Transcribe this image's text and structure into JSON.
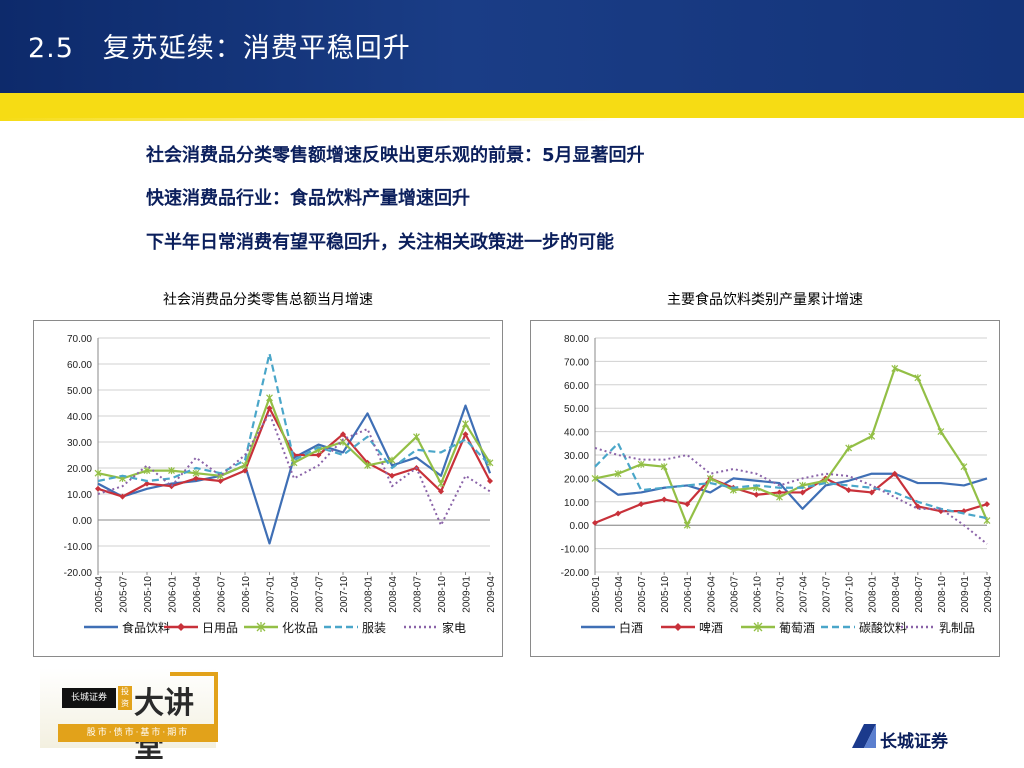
{
  "slide": {
    "section_number": "2.5",
    "title": "复苏延续：消费平稳回升",
    "bullets": [
      "社会消费品分类零售额增速反映出更乐观的前景：5月显著回升",
      "快速消费品行业：食品饮料产量增速回升",
      "下半年日常消费有望平稳回升，关注相关政策进一步的可能"
    ]
  },
  "logo": {
    "mark_text": "长城证券",
    "square_text": "投资",
    "big_text": "大讲堂",
    "sub_text": "股市·债市·基市·期市"
  },
  "brand": {
    "name": "长城证券",
    "accent": "#0b1f5c"
  },
  "colors": {
    "header": "#14347a",
    "yellow": "#f6dc14"
  },
  "chart_data": [
    {
      "type": "line",
      "title": "社会消费品分类零售总额当月增速",
      "ylim": [
        -20,
        70
      ],
      "yticks": [
        "70.00",
        "60.00",
        "50.00",
        "40.00",
        "30.00",
        "20.00",
        "10.00",
        "0.00",
        "-10.00",
        "-20.00"
      ],
      "x": [
        "2005-04",
        "2005-07",
        "2005-10",
        "2006-01",
        "2006-04",
        "2006-07",
        "2006-10",
        "2007-01",
        "2007-04",
        "2007-07",
        "2007-10",
        "2008-01",
        "2008-04",
        "2008-07",
        "2008-10",
        "2009-01",
        "2009-04"
      ],
      "grid": true,
      "legend": "bottom",
      "series": [
        {
          "name": "食品饮料",
          "color": "#3f6fb5",
          "style": "solid",
          "values": [
            14,
            9,
            12,
            14,
            15,
            17,
            21,
            -9,
            24,
            29,
            26,
            41,
            21,
            24,
            17,
            44,
            18
          ]
        },
        {
          "name": "日用品",
          "color": "#c8313a",
          "style": "solid-marker",
          "values": [
            12,
            9,
            14,
            13,
            16,
            15,
            19,
            43,
            25,
            25,
            33,
            22,
            17,
            20,
            11,
            33,
            15
          ]
        },
        {
          "name": "化妆品",
          "color": "#93bf46",
          "style": "solid-star",
          "values": [
            18,
            16,
            19,
            19,
            18,
            17,
            21,
            47,
            22,
            27,
            30,
            21,
            23,
            32,
            14,
            37,
            22
          ]
        },
        {
          "name": "服装",
          "color": "#4aa6c9",
          "style": "dashed",
          "values": [
            15,
            17,
            15,
            16,
            20,
            18,
            23,
            64,
            23,
            28,
            25,
            32,
            20,
            27,
            26,
            31,
            21
          ]
        },
        {
          "name": "家电",
          "color": "#8a63a8",
          "style": "dotted",
          "values": [
            10,
            13,
            21,
            13,
            24,
            17,
            25,
            41,
            16,
            21,
            31,
            35,
            13,
            20,
            -2,
            17,
            11
          ]
        }
      ]
    },
    {
      "type": "line",
      "title": "主要食品饮料类别产量累计增速",
      "ylim": [
        -20,
        80
      ],
      "yticks": [
        "80.00",
        "70.00",
        "60.00",
        "50.00",
        "40.00",
        "30.00",
        "20.00",
        "10.00",
        "0.00",
        "-10.00",
        "-20.00"
      ],
      "x": [
        "2005-01",
        "2005-04",
        "2005-07",
        "2005-10",
        "2006-01",
        "2006-04",
        "2006-07",
        "2006-10",
        "2007-01",
        "2007-04",
        "2007-07",
        "2007-10",
        "2008-01",
        "2008-04",
        "2008-07",
        "2008-10",
        "2009-01",
        "2009-04"
      ],
      "grid": true,
      "legend": "bottom",
      "series": [
        {
          "name": "白酒",
          "color": "#3f6fb5",
          "style": "solid",
          "values": [
            20,
            13,
            14,
            16,
            17,
            14,
            20,
            19,
            18,
            7,
            17,
            19,
            22,
            22,
            18,
            18,
            17,
            20
          ]
        },
        {
          "name": "啤酒",
          "color": "#c8313a",
          "style": "solid-marker",
          "values": [
            1,
            5,
            9,
            11,
            9,
            20,
            16,
            13,
            14,
            14,
            20,
            15,
            14,
            22,
            8,
            6,
            6,
            9
          ]
        },
        {
          "name": "葡萄酒",
          "color": "#93bf46",
          "style": "solid-star",
          "values": [
            20,
            22,
            26,
            25,
            0,
            20,
            15,
            16,
            12,
            17,
            19,
            33,
            38,
            67,
            63,
            40,
            25,
            2
          ]
        },
        {
          "name": "碳酸饮料",
          "color": "#4aa6c9",
          "style": "dashed",
          "values": [
            25,
            35,
            15,
            16,
            17,
            18,
            16,
            17,
            16,
            16,
            18,
            17,
            16,
            14,
            10,
            7,
            5,
            3
          ]
        },
        {
          "name": "乳制品",
          "color": "#8a63a8",
          "style": "dotted",
          "values": [
            33,
            30,
            28,
            28,
            30,
            22,
            24,
            22,
            17,
            20,
            22,
            21,
            17,
            12,
            7,
            7,
            0,
            -8
          ]
        }
      ]
    }
  ]
}
